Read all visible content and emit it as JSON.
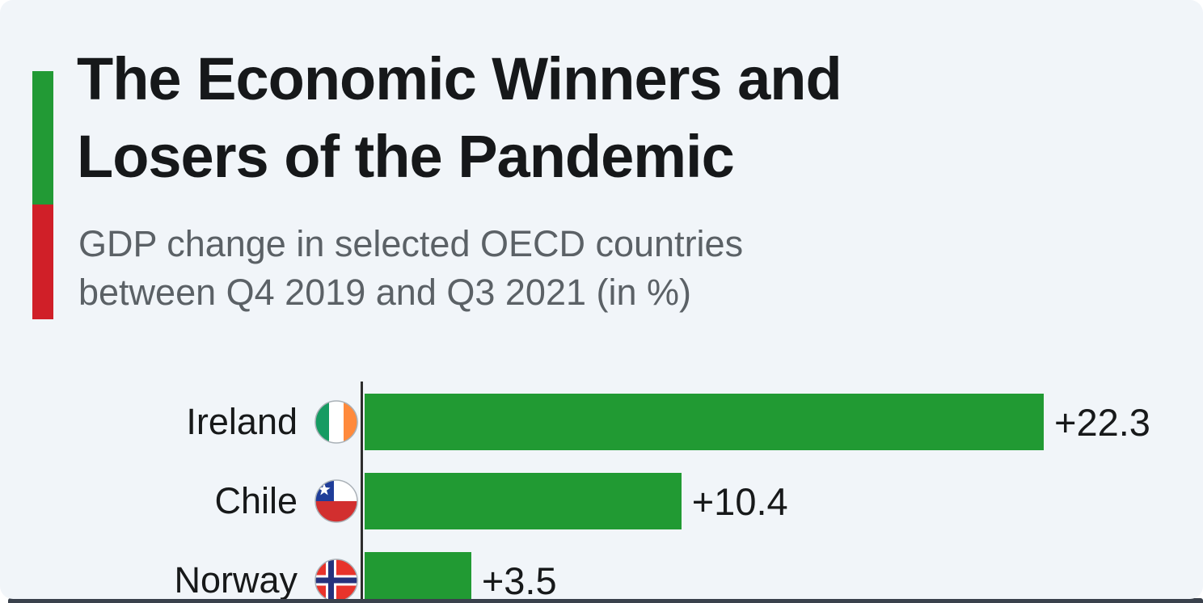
{
  "page": {
    "background": "#ffffff",
    "card_background": "#f1f5f9",
    "bottom_strip_color": "#3a414c"
  },
  "header": {
    "title_lines": [
      "The Economic Winners and",
      "Losers of the Pandemic"
    ],
    "subtitle_lines": [
      "GDP change in selected OECD countries",
      "between Q4 2019 and Q3 2021 (in %)"
    ],
    "accent_green": "#229a35",
    "accent_red": "#d01f28"
  },
  "chart_data": {
    "type": "bar",
    "orientation": "horizontal",
    "title": "The Economic Winners and Losers of the Pandemic",
    "subtitle": "GDP change in selected OECD countries between Q4 2019 and Q3 2021 (in %)",
    "categories": [
      "Ireland",
      "Chile",
      "Norway"
    ],
    "values": [
      22.3,
      10.4,
      3.5
    ],
    "x_axis_max": 22.3,
    "bar_color": "#219a33",
    "axis_color": "#2d2d2d",
    "grid": "off",
    "legend": "none",
    "rows": [
      {
        "label": "Ireland",
        "value": 22.3,
        "value_label": "+22.3",
        "flag": "ireland"
      },
      {
        "label": "Chile",
        "value": 10.4,
        "value_label": "+10.4",
        "flag": "chile"
      },
      {
        "label": "Norway",
        "value": 3.5,
        "value_label": "+3.5",
        "flag": "norway"
      }
    ]
  }
}
